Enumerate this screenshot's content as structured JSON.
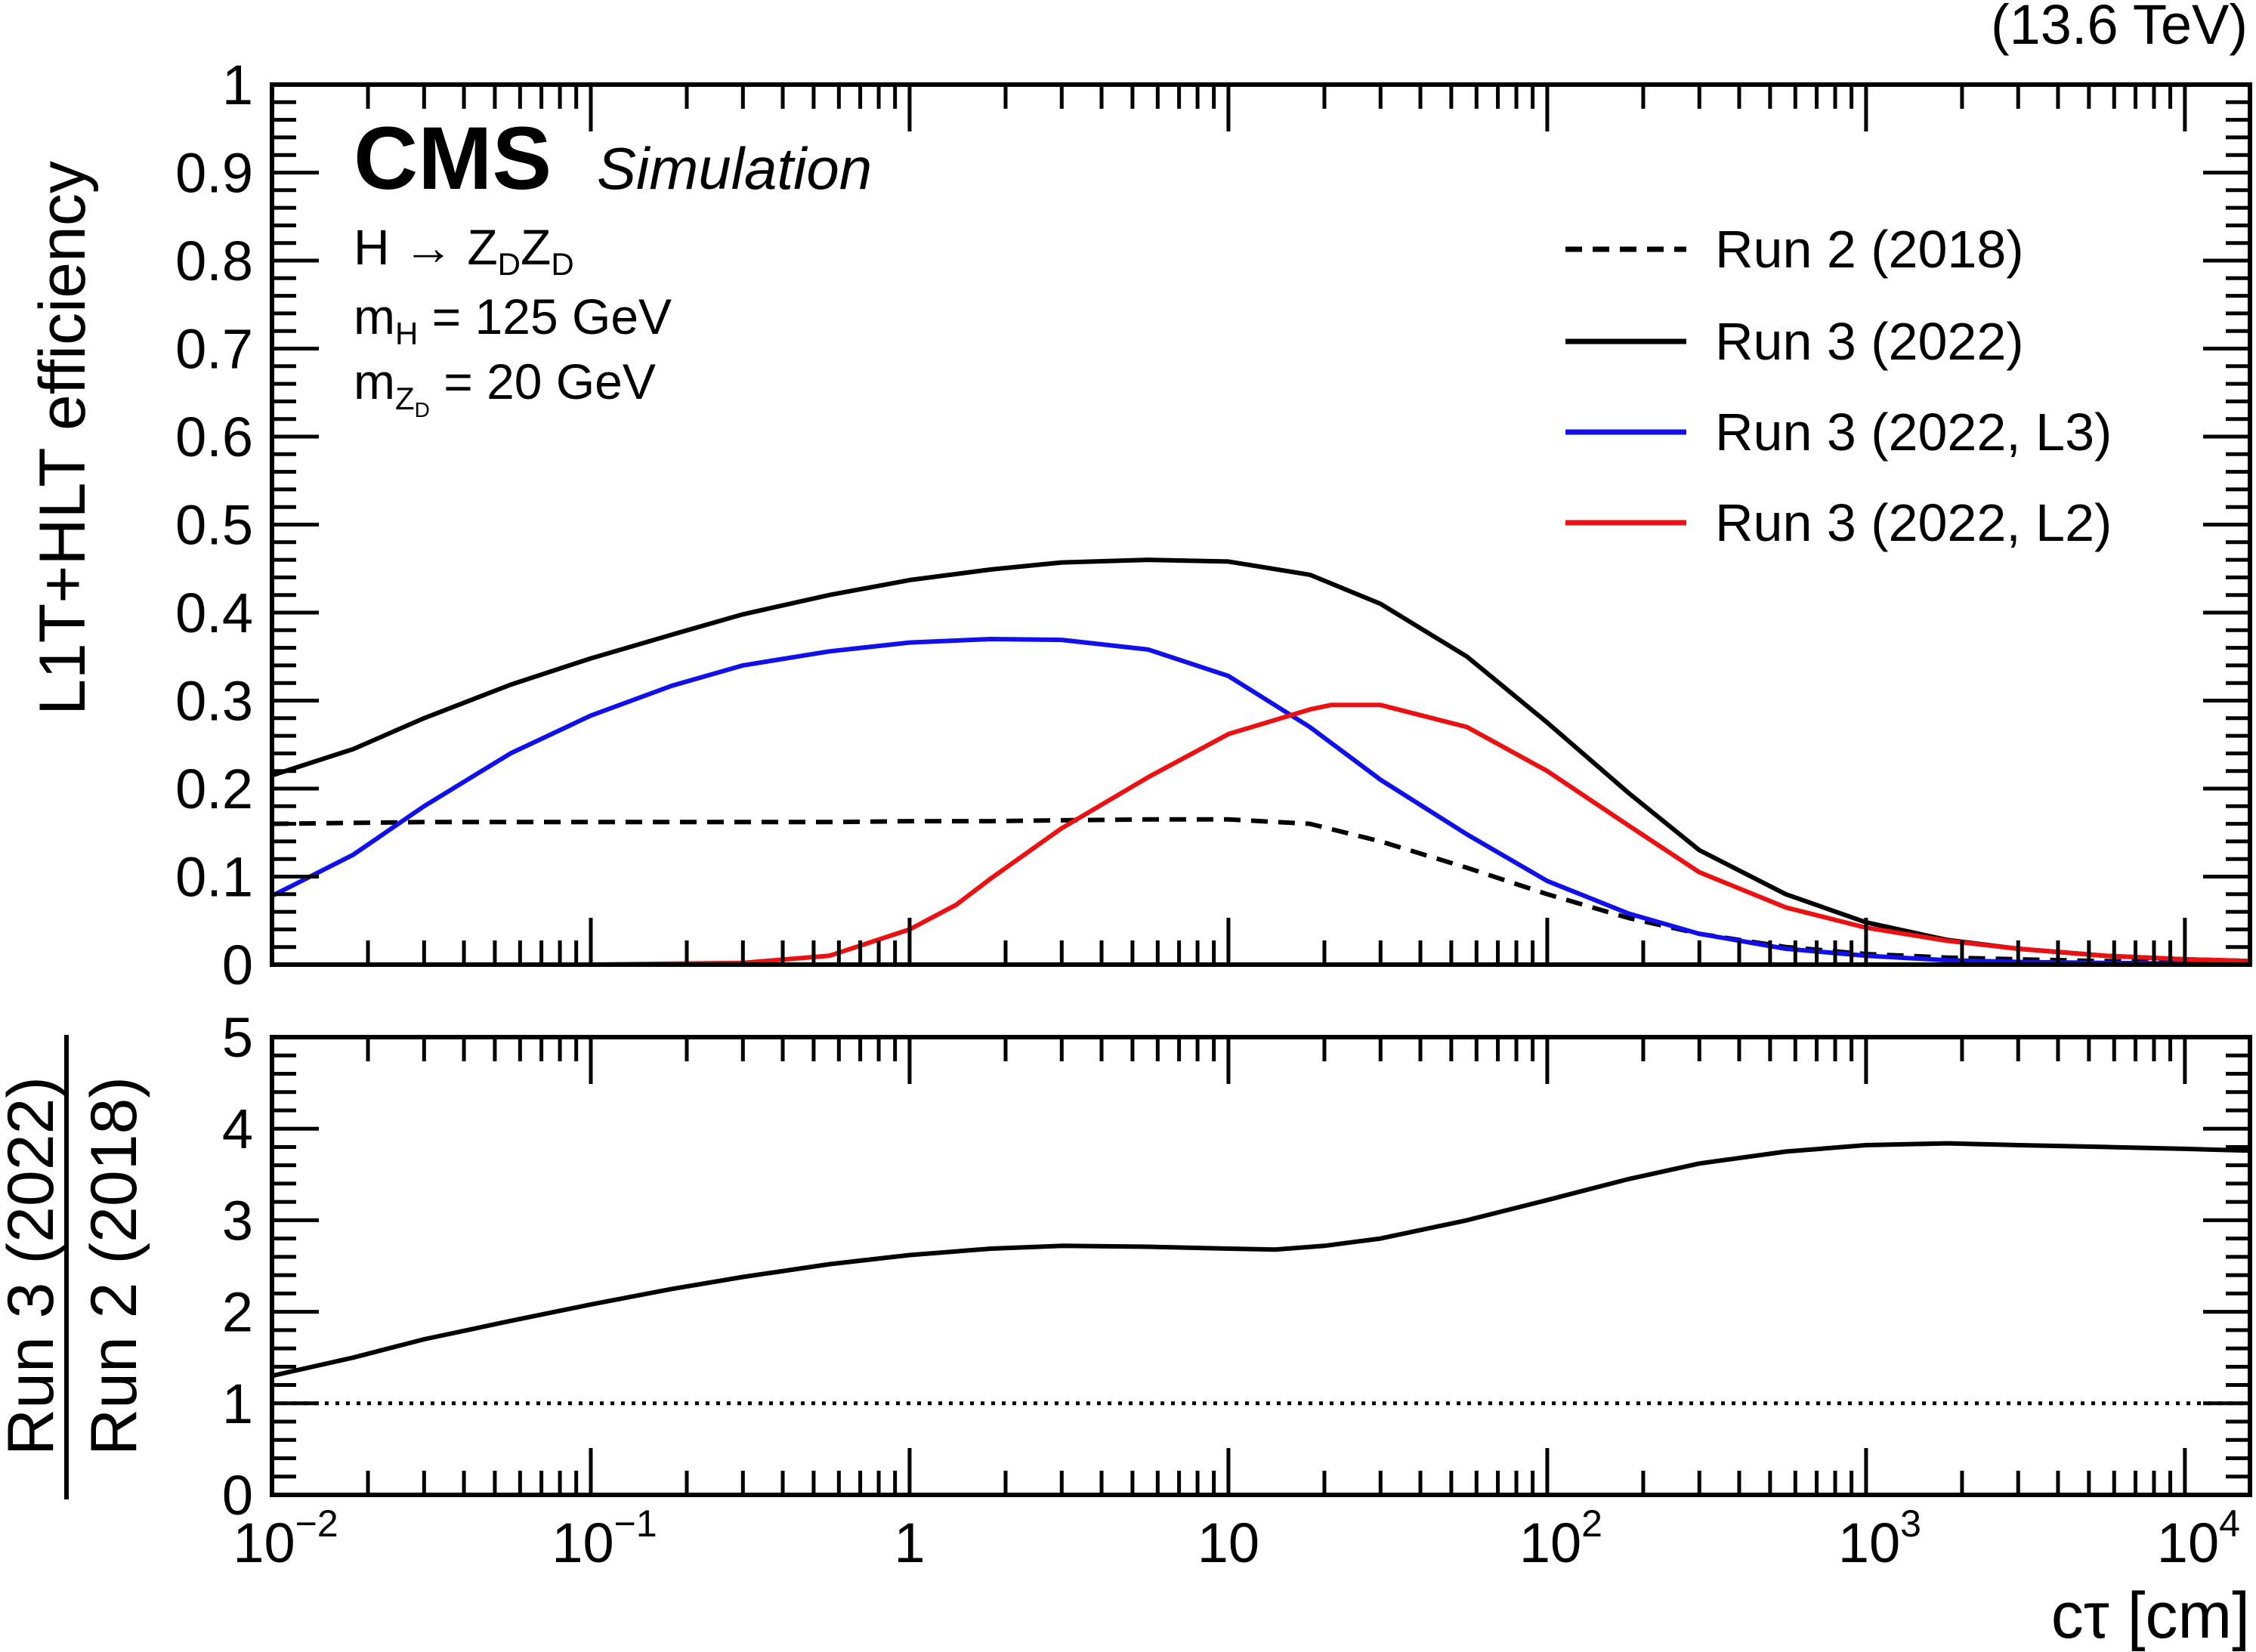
{
  "header": {
    "energy": "(13.6 TeV)",
    "experiment": "CMS",
    "tag": "Simulation"
  },
  "info": {
    "process": {
      "prefix": "H → Z",
      "sub1": "D",
      "mid": "Z",
      "sub2": "D"
    },
    "mass_h": {
      "prefix": "m",
      "sub": "H",
      "suffix": " = 125 GeV"
    },
    "mass_zd": {
      "prefix": "m",
      "sub": "Z",
      "subsub": "D",
      "suffix": " =   20 GeV"
    }
  },
  "colors": {
    "run2": "#000000",
    "run3": "#000000",
    "run3_l3": "#1010ee",
    "run3_l2": "#ee1010",
    "ratio": "#000000",
    "reference": "#000000"
  },
  "chart_data": [
    {
      "type": "line",
      "panel": "efficiency",
      "xscale": "log",
      "xlim": [
        0.01,
        16000
      ],
      "ylim": [
        0,
        1
      ],
      "ylabel": "L1T+HLT efficiency",
      "yticks": [
        {
          "value": 0,
          "label": "0"
        },
        {
          "value": 0.1,
          "label": "0.1"
        },
        {
          "value": 0.2,
          "label": "0.2"
        },
        {
          "value": 0.3,
          "label": "0.3"
        },
        {
          "value": 0.4,
          "label": "0.4"
        },
        {
          "value": 0.5,
          "label": "0.5"
        },
        {
          "value": 0.6,
          "label": "0.6"
        },
        {
          "value": 0.7,
          "label": "0.7"
        },
        {
          "value": 0.8,
          "label": "0.8"
        },
        {
          "value": 0.9,
          "label": "0.9"
        },
        {
          "value": 1,
          "label": "1"
        }
      ],
      "legend_position": "top-right",
      "series": [
        {
          "name": "Run 2 (2018)",
          "style": "dashed",
          "color_key": "run2",
          "x": [
            0.01,
            0.018,
            0.03,
            0.056,
            0.1,
            0.18,
            0.3,
            0.56,
            1,
            1.8,
            3,
            5.6,
            10,
            18,
            30,
            56,
            100,
            180,
            300,
            560,
            1000,
            1800,
            3000,
            5600,
            10000,
            16000
          ],
          "y": [
            0.16,
            0.161,
            0.162,
            0.162,
            0.162,
            0.162,
            0.162,
            0.162,
            0.163,
            0.163,
            0.164,
            0.165,
            0.165,
            0.16,
            0.14,
            0.11,
            0.08,
            0.053,
            0.035,
            0.02,
            0.012,
            0.008,
            0.006,
            0.004,
            0.003,
            0.002
          ]
        },
        {
          "name": "Run 3 (2022)",
          "style": "solid",
          "color_key": "run3",
          "x": [
            0.01,
            0.018,
            0.03,
            0.056,
            0.1,
            0.18,
            0.3,
            0.56,
            1,
            1.8,
            3,
            5.6,
            10,
            18,
            30,
            56,
            100,
            180,
            300,
            560,
            1000,
            1800,
            3000,
            5600,
            10000,
            16000
          ],
          "y": [
            0.215,
            0.245,
            0.28,
            0.318,
            0.348,
            0.375,
            0.398,
            0.42,
            0.437,
            0.449,
            0.457,
            0.46,
            0.458,
            0.443,
            0.41,
            0.35,
            0.275,
            0.195,
            0.13,
            0.08,
            0.048,
            0.028,
            0.018,
            0.01,
            0.006,
            0.004
          ]
        },
        {
          "name": "Run 3 (2022, L3)",
          "style": "solid",
          "color_key": "run3_l3",
          "x": [
            0.01,
            0.018,
            0.03,
            0.056,
            0.1,
            0.18,
            0.3,
            0.56,
            1,
            1.8,
            3,
            5.6,
            10,
            18,
            30,
            56,
            100,
            180,
            300,
            560,
            1000,
            1800,
            3000,
            5600,
            10000,
            16000
          ],
          "y": [
            0.078,
            0.125,
            0.18,
            0.24,
            0.283,
            0.317,
            0.34,
            0.356,
            0.366,
            0.37,
            0.369,
            0.358,
            0.328,
            0.27,
            0.21,
            0.148,
            0.095,
            0.058,
            0.035,
            0.018,
            0.01,
            0.005,
            0.003,
            0.002,
            0.001,
            0.001
          ]
        },
        {
          "name": "Run 3 (2022, L2)",
          "style": "solid",
          "color_key": "run3_l2",
          "x": [
            0.01,
            0.018,
            0.03,
            0.056,
            0.1,
            0.18,
            0.3,
            0.56,
            1,
            1.4,
            1.8,
            3,
            5.6,
            10,
            18,
            21,
            30,
            56,
            100,
            180,
            300,
            560,
            1000,
            1800,
            3000,
            5600,
            10000,
            16000
          ],
          "y": [
            0,
            0,
            0,
            0,
            0,
            0.001,
            0.002,
            0.01,
            0.04,
            0.068,
            0.098,
            0.155,
            0.213,
            0.262,
            0.29,
            0.295,
            0.295,
            0.27,
            0.22,
            0.158,
            0.105,
            0.065,
            0.042,
            0.027,
            0.018,
            0.01,
            0.006,
            0.004
          ]
        }
      ]
    },
    {
      "type": "line",
      "panel": "ratio",
      "xscale": "log",
      "xlim": [
        0.01,
        16000
      ],
      "ylim": [
        0,
        5
      ],
      "ylabel_numerator": "Run 3 (2022)",
      "ylabel_denominator": "Run 2 (2018)",
      "xlabel": "cτ [cm]",
      "yticks": [
        {
          "value": 0,
          "label": "0"
        },
        {
          "value": 1,
          "label": "1"
        },
        {
          "value": 2,
          "label": "2"
        },
        {
          "value": 3,
          "label": "3"
        },
        {
          "value": 4,
          "label": "4"
        },
        {
          "value": 5,
          "label": "5"
        }
      ],
      "xticks": [
        {
          "value": 0.01,
          "base": "10",
          "exp": "−2"
        },
        {
          "value": 0.1,
          "base": "10",
          "exp": "−1"
        },
        {
          "value": 1,
          "base": "1",
          "exp": ""
        },
        {
          "value": 10,
          "base": "10",
          "exp": ""
        },
        {
          "value": 100,
          "base": "10",
          "exp": "2"
        },
        {
          "value": 1000,
          "base": "10",
          "exp": "3"
        },
        {
          "value": 10000,
          "base": "10",
          "exp": "4"
        }
      ],
      "reference_line": {
        "y": 1,
        "style": "dotted"
      },
      "series": [
        {
          "style": "solid",
          "color_key": "ratio",
          "x": [
            0.01,
            0.018,
            0.03,
            0.056,
            0.1,
            0.18,
            0.3,
            0.56,
            1,
            1.8,
            3,
            5.6,
            10,
            14,
            20,
            30,
            56,
            100,
            180,
            300,
            560,
            1000,
            1800,
            3000,
            5600,
            10000,
            16000
          ],
          "y": [
            1.3,
            1.5,
            1.7,
            1.9,
            2.08,
            2.25,
            2.38,
            2.52,
            2.62,
            2.69,
            2.72,
            2.71,
            2.69,
            2.68,
            2.72,
            2.8,
            3.0,
            3.22,
            3.45,
            3.62,
            3.75,
            3.82,
            3.84,
            3.82,
            3.8,
            3.78,
            3.76
          ]
        }
      ]
    }
  ]
}
